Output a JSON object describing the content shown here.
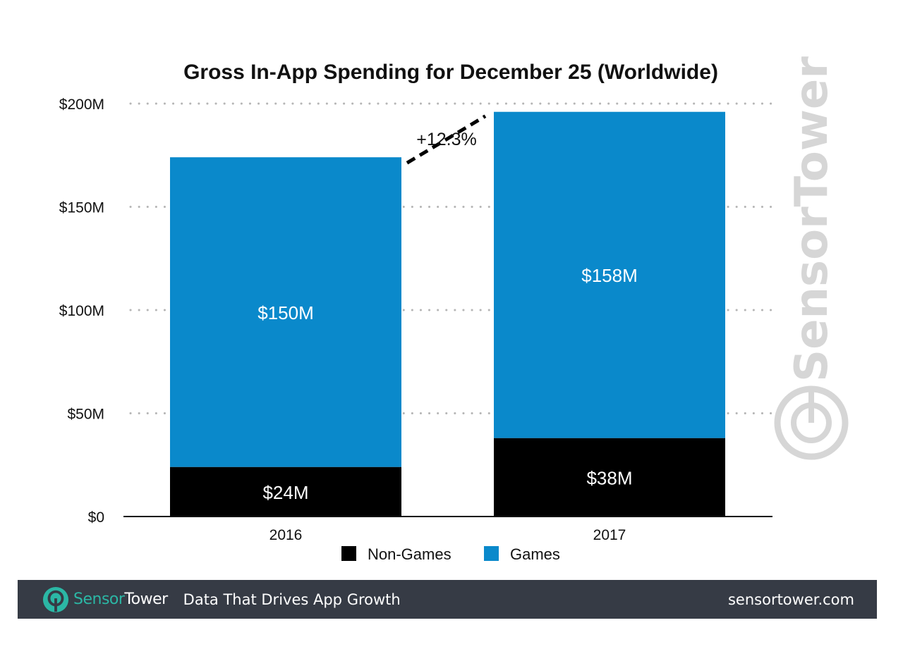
{
  "chart_data": {
    "type": "bar",
    "stacked": true,
    "title": "Gross In-App Spending for December 25 (Worldwide)",
    "xlabel": "",
    "ylabel": "",
    "categories": [
      "2016",
      "2017"
    ],
    "series": [
      {
        "name": "Non-Games",
        "color": "#000000",
        "values": [
          24,
          38
        ],
        "labels": [
          "$24M",
          "$38M"
        ]
      },
      {
        "name": "Games",
        "color": "#0a89cb",
        "values": [
          150,
          158
        ],
        "labels": [
          "$150M",
          "$158M"
        ]
      }
    ],
    "ylim": [
      0,
      200
    ],
    "yticks": [
      0,
      50,
      100,
      150,
      200
    ],
    "ytick_labels": [
      "$0",
      "$50M",
      "$100M",
      "$150M",
      "$200M"
    ],
    "grid": "dotted-horizontal",
    "legend": {
      "placement": "bottom-center",
      "entries": [
        "Non-Games",
        "Games"
      ]
    },
    "annotation": {
      "text": "+12.3%",
      "from": "2016",
      "to": "2017",
      "style": "dashed-line"
    },
    "watermark": "SensorTower"
  },
  "footer": {
    "brand_part1": "Sensor",
    "brand_part2": "Tower",
    "tagline": "Data That Drives App Growth",
    "site": "sensortower.com",
    "brand_color": "#2bb7a5",
    "background": "#363b45"
  }
}
